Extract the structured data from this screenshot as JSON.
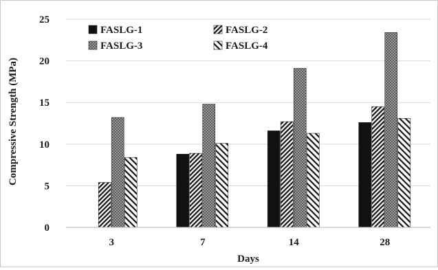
{
  "chart_data": {
    "type": "bar",
    "title": "",
    "xlabel": "Days",
    "ylabel": "Compressive Strength (MPa)",
    "categories": [
      "3",
      "7",
      "14",
      "28"
    ],
    "ylim": [
      0,
      25
    ],
    "yticks": [
      0,
      5,
      10,
      15,
      20,
      25
    ],
    "grid": "horizontal",
    "legend_position": "top-left",
    "series": [
      {
        "name": "FASLG-1",
        "values": [
          0,
          8.8,
          11.6,
          12.6
        ],
        "pattern": "solid",
        "color": "#111111"
      },
      {
        "name": "FASLG-2",
        "values": [
          5.4,
          8.9,
          12.7,
          14.5
        ],
        "pattern": "diagonal-dense",
        "color": "#111111"
      },
      {
        "name": "FASLG-3",
        "values": [
          13.2,
          14.8,
          19.1,
          23.4
        ],
        "pattern": "checker-grey",
        "color": "#777777"
      },
      {
        "name": "FASLG-4",
        "values": [
          8.4,
          10.1,
          11.3,
          13.1
        ],
        "pattern": "diagonal-wide",
        "color": "#111111"
      }
    ]
  }
}
